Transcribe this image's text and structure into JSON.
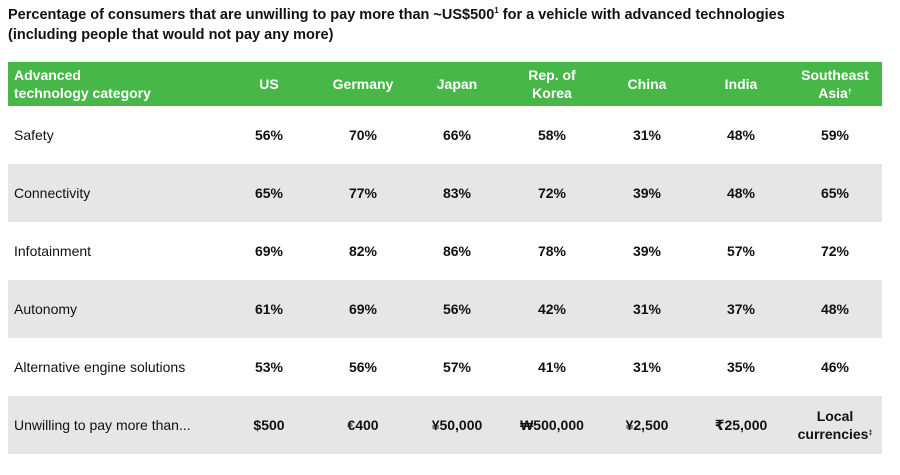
{
  "title": "Percentage of consumers that are unwilling to pay more than ~US$500",
  "title_sup": "1",
  "title_cont": " for a vehicle with advanced technologies (including people that would not pay any more)",
  "colors": {
    "header_bg": "#47b748",
    "alt_row_bg": "#e6e6e6",
    "text": "#111111"
  },
  "chart_data": {
    "type": "table",
    "header": {
      "category_line1": "Advanced",
      "category_line2": "technology category",
      "columns": [
        {
          "line1": "US",
          "line2": "",
          "sup": ""
        },
        {
          "line1": "Germany",
          "line2": "",
          "sup": ""
        },
        {
          "line1": "Japan",
          "line2": "",
          "sup": ""
        },
        {
          "line1": "Rep. of",
          "line2": "Korea",
          "sup": ""
        },
        {
          "line1": "China",
          "line2": "",
          "sup": ""
        },
        {
          "line1": "India",
          "line2": "",
          "sup": ""
        },
        {
          "line1": "Southeast",
          "line2": "Asia",
          "sup": "†"
        }
      ]
    },
    "rows": [
      {
        "label": "Safety",
        "values": [
          "56%",
          "70%",
          "66%",
          "58%",
          "31%",
          "48%",
          "59%"
        ]
      },
      {
        "label": "Connectivity",
        "values": [
          "65%",
          "77%",
          "83%",
          "72%",
          "39%",
          "48%",
          "65%"
        ]
      },
      {
        "label": "Infotainment",
        "values": [
          "69%",
          "82%",
          "86%",
          "78%",
          "39%",
          "57%",
          "72%"
        ]
      },
      {
        "label": "Autonomy",
        "values": [
          "61%",
          "69%",
          "56%",
          "42%",
          "31%",
          "37%",
          "48%"
        ]
      },
      {
        "label": "Alternative engine solutions",
        "values": [
          "53%",
          "56%",
          "57%",
          "41%",
          "31%",
          "35%",
          "46%"
        ]
      }
    ],
    "price_row": {
      "label": "Unwilling to pay more than...",
      "values": [
        "$500",
        "€400",
        "¥50,000",
        "₩500,000",
        "¥2,500",
        "₹25,000"
      ],
      "last_line1": "Local",
      "last_line2": "currencies",
      "last_sup": "‡"
    }
  }
}
